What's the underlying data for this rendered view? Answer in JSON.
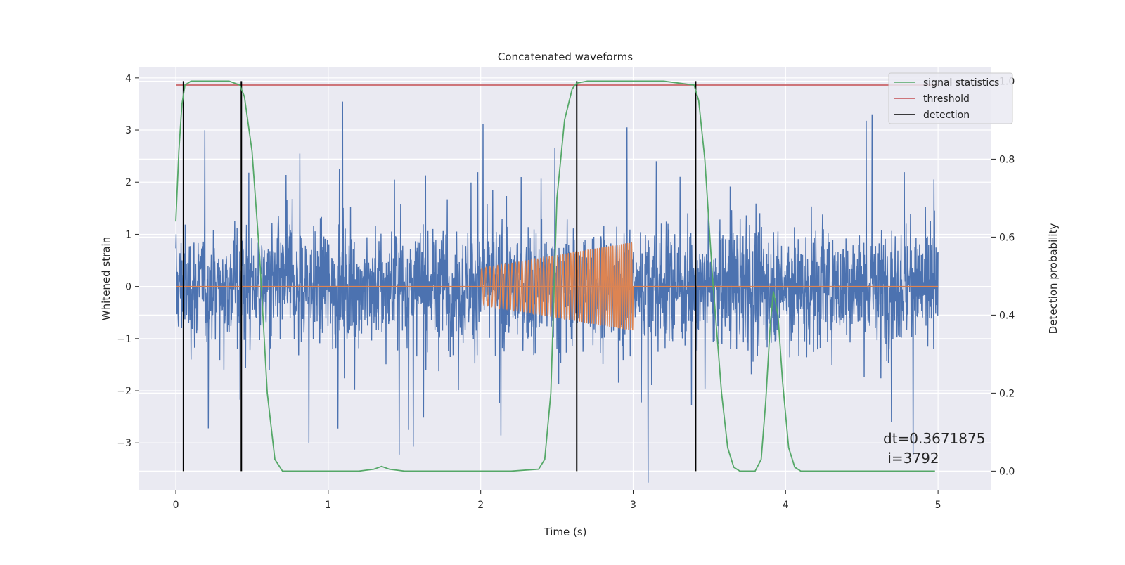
{
  "chart_data": {
    "type": "line",
    "title": "Concatenated waveforms",
    "xlabel": "Time (s)",
    "ylabel_left": "Whitened strain",
    "ylabel_right": "Detection probability",
    "xlim": [
      -0.24,
      5.35
    ],
    "ylim_left": [
      -3.9,
      4.2
    ],
    "ylim_right": [
      -0.048,
      1.035
    ],
    "x_ticks": [
      0,
      1,
      2,
      3,
      4,
      5
    ],
    "y_left_ticks": [
      -3,
      -2,
      -1,
      0,
      1,
      2,
      3,
      4
    ],
    "y_right_ticks": [
      0.0,
      0.2,
      0.4,
      0.6,
      0.8,
      1.0
    ],
    "x_tick_labels": [
      "0",
      "1",
      "2",
      "3",
      "4",
      "5"
    ],
    "y_left_tick_labels": [
      "−3",
      "−2",
      "−1",
      "0",
      "1",
      "2",
      "3",
      "4"
    ],
    "y_right_tick_labels": [
      "0.0",
      "0.2",
      "0.4",
      "0.6",
      "0.8",
      "1.0"
    ],
    "grid": true,
    "legend_position": "top-right",
    "legend": [
      {
        "label": "signal statistics",
        "color": "#55a868"
      },
      {
        "label": "threshold",
        "color": "#c44e52"
      },
      {
        "label": "detection",
        "color": "#000000"
      }
    ],
    "series": [
      {
        "name": "whitened strain",
        "axis": "left",
        "color": "#4c72b0",
        "x_range": [
          0,
          5
        ],
        "envelope_typical": 2.3,
        "envelope_peak": 3.8
      },
      {
        "name": "injected waveform",
        "axis": "left",
        "color": "#dd8452",
        "baseline": 0,
        "chirp_x_range": [
          2.0,
          3.0
        ],
        "chirp_amplitude_start": 0.35,
        "chirp_amplitude_end": 0.85
      },
      {
        "name": "signal statistics",
        "axis": "right",
        "color": "#55a868",
        "x": [
          0.0,
          0.02,
          0.04,
          0.06,
          0.1,
          0.2,
          0.35,
          0.42,
          0.45,
          0.5,
          0.55,
          0.6,
          0.65,
          0.7,
          1.2,
          1.3,
          1.35,
          1.4,
          1.5,
          2.2,
          2.38,
          2.42,
          2.46,
          2.5,
          2.55,
          2.6,
          2.63,
          2.7,
          2.9,
          3.2,
          3.4,
          3.43,
          3.47,
          3.52,
          3.58,
          3.62,
          3.66,
          3.7,
          3.8,
          3.84,
          3.87,
          3.9,
          3.92,
          3.95,
          3.98,
          4.02,
          4.06,
          4.1,
          4.5,
          4.98
        ],
        "y": [
          0.64,
          0.82,
          0.94,
          0.99,
          1.0,
          1.0,
          1.0,
          0.99,
          0.96,
          0.82,
          0.55,
          0.2,
          0.03,
          0.0,
          0.0,
          0.005,
          0.012,
          0.005,
          0.0,
          0.0,
          0.005,
          0.03,
          0.2,
          0.7,
          0.9,
          0.98,
          0.995,
          1.0,
          1.0,
          1.0,
          0.99,
          0.95,
          0.8,
          0.5,
          0.2,
          0.06,
          0.01,
          0.0,
          0.0,
          0.03,
          0.18,
          0.38,
          0.46,
          0.4,
          0.23,
          0.06,
          0.01,
          0.0,
          0.0,
          0.0
        ]
      },
      {
        "name": "threshold",
        "axis": "right",
        "color": "#c44e52",
        "x": [
          0,
          5
        ],
        "y": [
          0.99,
          0.99
        ]
      },
      {
        "name": "detection",
        "axis": "right",
        "color": "#000000",
        "type": "vlines",
        "x": [
          0.05,
          0.43,
          2.63,
          3.41
        ],
        "y_range": [
          0.0,
          1.0
        ]
      }
    ],
    "annotation": {
      "line1": "dt=0.3671875",
      "line2": " i=3792"
    }
  }
}
